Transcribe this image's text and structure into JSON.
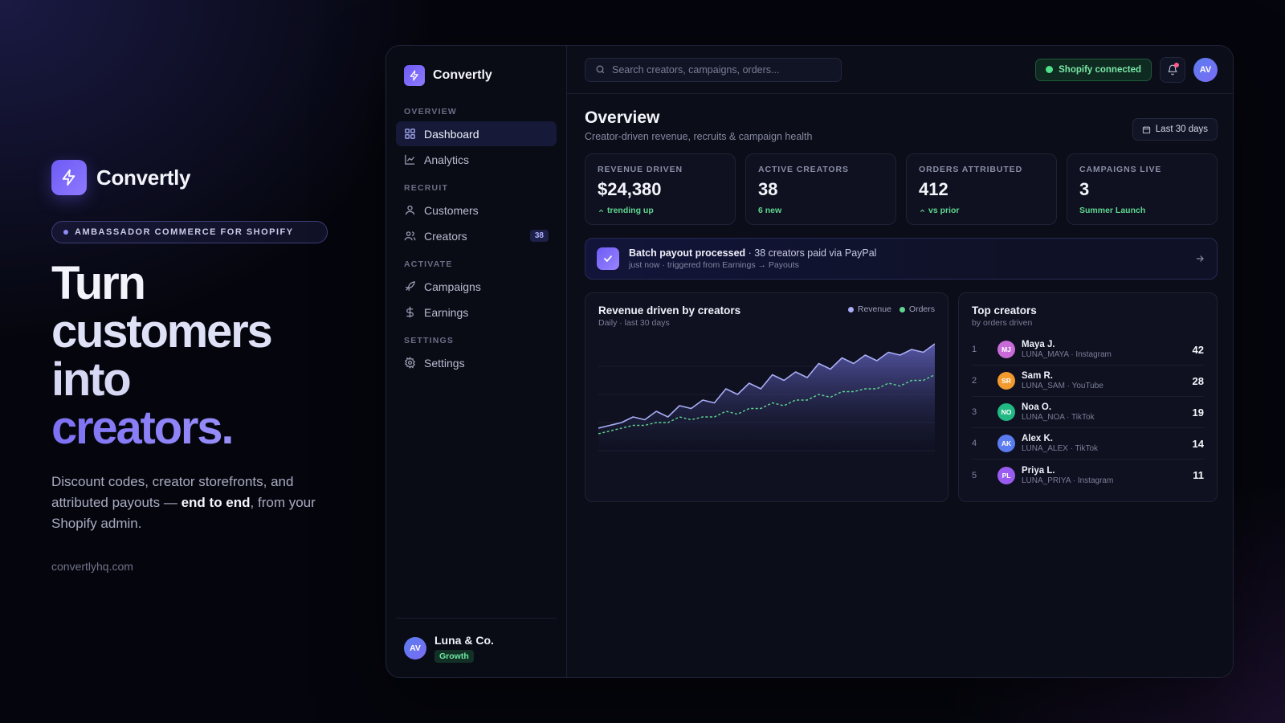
{
  "hero": {
    "brand": "Convertly",
    "tag": "AMBASSADOR COMMERCE FOR SHOPIFY",
    "headline": [
      "Turn",
      "customers",
      "into",
      "creators."
    ],
    "desc_pre": "Discount codes, creator storefronts, and attributed payouts — ",
    "desc_bold": "end to end",
    "desc_post": ", from your Shopify admin.",
    "url": "convertlyhq.com"
  },
  "sidebar": {
    "brand": "Convertly",
    "sections": {
      "overview": "OVERVIEW",
      "recruit": "RECRUIT",
      "activate": "ACTIVATE",
      "settings": "SETTINGS"
    },
    "items": {
      "dashboard": "Dashboard",
      "analytics": "Analytics",
      "customers": "Customers",
      "creators": "Creators",
      "creators_badge": "38",
      "campaigns": "Campaigns",
      "earnings": "Earnings",
      "settings": "Settings"
    },
    "footer": {
      "initials": "AV",
      "org": "Luna & Co.",
      "plan": "Growth"
    }
  },
  "topbar": {
    "search_placeholder": "Search creators, campaigns, orders...",
    "shopify_status": "Shopify connected",
    "user_initials": "AV"
  },
  "page": {
    "title": "Overview",
    "subtitle": "Creator-driven revenue, recruits & campaign health",
    "range": "Last 30 days"
  },
  "stats": [
    {
      "label": "REVENUE DRIVEN",
      "value": "$24,380",
      "note": "trending up",
      "arrow": true
    },
    {
      "label": "ACTIVE CREATORS",
      "value": "38",
      "note": "6 new",
      "arrow": false
    },
    {
      "label": "ORDERS ATTRIBUTED",
      "value": "412",
      "note": "vs prior",
      "arrow": true
    },
    {
      "label": "CAMPAIGNS LIVE",
      "value": "3",
      "note": "Summer Launch",
      "arrow": false
    }
  ],
  "banner": {
    "title": "Batch payout processed",
    "detail": " · 38 creators paid via PayPal",
    "sub": "just now · triggered from Earnings → Payouts"
  },
  "chart": {
    "title": "Revenue driven by creators",
    "subtitle": "Daily · last 30 days",
    "legend": [
      "Revenue",
      "Orders"
    ],
    "colors": {
      "revenue": "#a9adf5",
      "orders": "#5fd68f"
    }
  },
  "chart_data": {
    "type": "area",
    "title": "Revenue driven by creators",
    "subtitle": "Daily · last 30 days",
    "x": [
      1,
      2,
      3,
      4,
      5,
      6,
      7,
      8,
      9,
      10,
      11,
      12,
      13,
      14,
      15,
      16,
      17,
      18,
      19,
      20,
      21,
      22,
      23,
      24,
      25,
      26,
      27,
      28,
      29,
      30
    ],
    "series": [
      {
        "name": "Revenue",
        "values": [
          8,
          9,
          10,
          12,
          11,
          14,
          12,
          16,
          15,
          18,
          17,
          22,
          20,
          24,
          22,
          27,
          25,
          28,
          26,
          31,
          29,
          33,
          31,
          34,
          32,
          35,
          34,
          36,
          35,
          38
        ]
      },
      {
        "name": "Orders",
        "values": [
          6,
          7,
          8,
          9,
          9,
          10,
          10,
          12,
          11,
          12,
          12,
          14,
          13,
          15,
          15,
          17,
          16,
          18,
          18,
          20,
          19,
          21,
          21,
          22,
          22,
          24,
          23,
          25,
          25,
          27
        ]
      }
    ],
    "ylim": [
      0,
      40
    ],
    "grid": true,
    "legend": "top-right"
  },
  "top_creators": {
    "title": "Top creators",
    "subtitle": "by orders driven",
    "rows": [
      {
        "rank": "1",
        "initials": "MJ",
        "name": "Maya J.",
        "handle": "LUNA_MAYA · Instagram",
        "count": "42",
        "color": "#c86bd9"
      },
      {
        "rank": "2",
        "initials": "SR",
        "name": "Sam R.",
        "handle": "LUNA_SAM · YouTube",
        "count": "28",
        "color": "#f29a2e"
      },
      {
        "rank": "3",
        "initials": "NO",
        "name": "Noa O.",
        "handle": "LUNA_NOA · TikTok",
        "count": "19",
        "color": "#22b884"
      },
      {
        "rank": "4",
        "initials": "AK",
        "name": "Alex K.",
        "handle": "LUNA_ALEX · TikTok",
        "count": "14",
        "color": "#5b7cf0"
      },
      {
        "rank": "5",
        "initials": "PL",
        "name": "Priya L.",
        "handle": "LUNA_PRIYA · Instagram",
        "count": "11",
        "color": "#9a5cf0"
      }
    ]
  }
}
